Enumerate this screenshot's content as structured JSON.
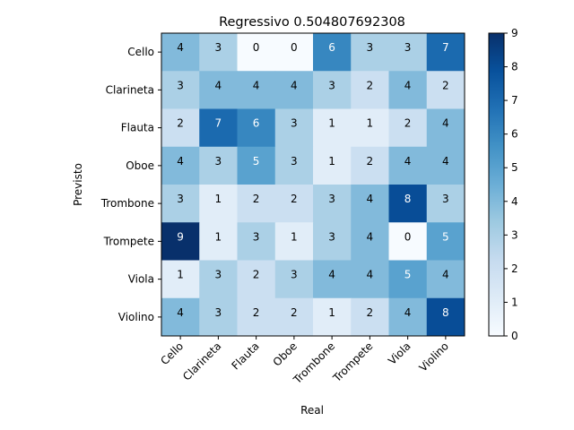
{
  "chart_data": {
    "type": "heatmap",
    "title": "Regressivo 0.504807692308",
    "xlabel": "Real",
    "ylabel": "Previsto",
    "x_categories": [
      "Cello",
      "Clarineta",
      "Flauta",
      "Oboe",
      "Trombone",
      "Trompete",
      "Viola",
      "Violino"
    ],
    "y_categories": [
      "Cello",
      "Clarineta",
      "Flauta",
      "Oboe",
      "Trombone",
      "Trompete",
      "Viola",
      "Violino"
    ],
    "values": [
      [
        4,
        3,
        0,
        0,
        6,
        3,
        3,
        7
      ],
      [
        3,
        4,
        4,
        4,
        3,
        2,
        4,
        2
      ],
      [
        2,
        7,
        6,
        3,
        1,
        1,
        2,
        4
      ],
      [
        4,
        3,
        5,
        3,
        1,
        2,
        4,
        4
      ],
      [
        3,
        1,
        2,
        2,
        3,
        4,
        8,
        3
      ],
      [
        9,
        1,
        3,
        1,
        3,
        4,
        0,
        5
      ],
      [
        1,
        3,
        2,
        3,
        4,
        4,
        5,
        4
      ],
      [
        4,
        3,
        2,
        2,
        1,
        2,
        4,
        8
      ]
    ],
    "colormap": "Blues",
    "colorbar": {
      "min": 0,
      "max": 9,
      "ticks": [
        "0",
        "1",
        "2",
        "3",
        "4",
        "5",
        "6",
        "7",
        "8",
        "9"
      ]
    },
    "grid": false
  }
}
